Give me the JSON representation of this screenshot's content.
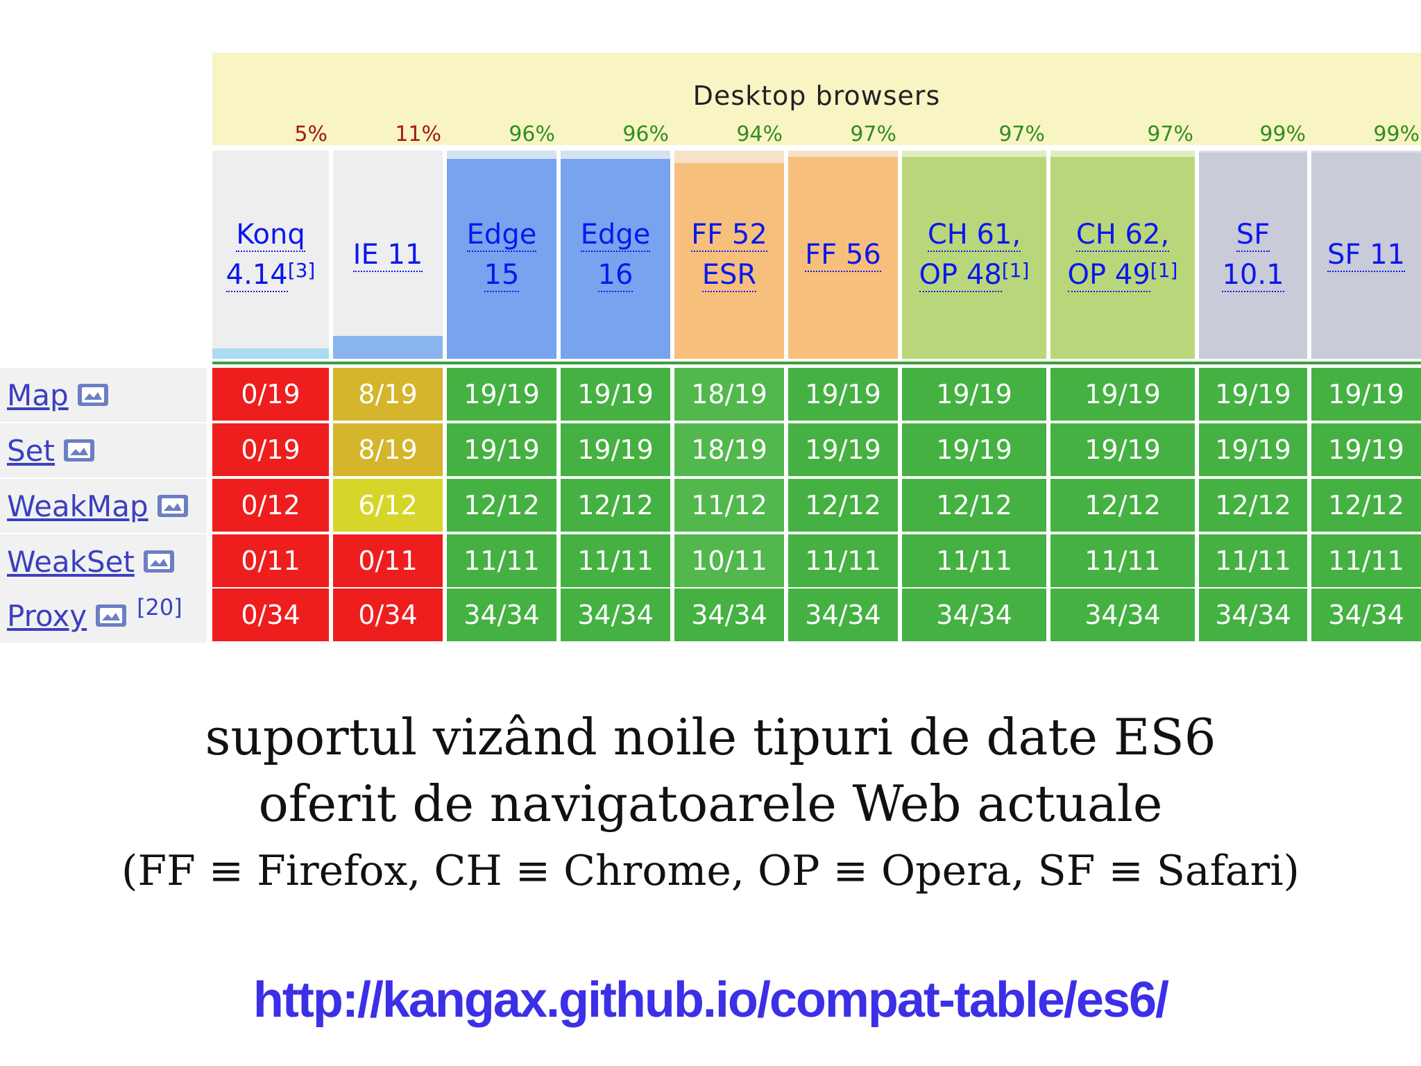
{
  "header": {
    "title": "Desktop browsers"
  },
  "colors": {
    "red": "#ef1e1e",
    "olive": "#d4b52c",
    "yellow": "#d6d62a",
    "green": "#45b142",
    "green_light": "#52b84e",
    "pct_red": "#a01818",
    "pct_green": "#2f8f1f"
  },
  "browsers": [
    {
      "id": "konq",
      "line1": "Konq",
      "line2": "4.14",
      "ref": "[3]",
      "pct": "5%",
      "pct_level": "red",
      "bg": "#eeeeee",
      "fill": "#a9dcf3",
      "fill_level": 0.05
    },
    {
      "id": "ie11",
      "line1": "IE 11",
      "line2": "",
      "ref": "",
      "pct": "11%",
      "pct_level": "red",
      "bg": "#eeeeee",
      "fill": "#8ab4ee",
      "fill_level": 0.11
    },
    {
      "id": "edge15",
      "line1": "Edge",
      "line2": "15",
      "ref": "",
      "pct": "96%",
      "pct_level": "green",
      "bg": "#d4e2f5",
      "fill": "#78a3ee",
      "fill_level": 0.96
    },
    {
      "id": "edge16",
      "line1": "Edge",
      "line2": "16",
      "ref": "",
      "pct": "96%",
      "pct_level": "green",
      "bg": "#d4e2f5",
      "fill": "#78a3ee",
      "fill_level": 0.96
    },
    {
      "id": "ff52",
      "line1": "FF 52",
      "line2": "ESR",
      "ref": "",
      "pct": "94%",
      "pct_level": "green",
      "bg": "#f6e2c8",
      "fill": "#f6c07c",
      "fill_level": 0.94
    },
    {
      "id": "ff56",
      "line1": "FF 56",
      "line2": "",
      "ref": "",
      "pct": "97%",
      "pct_level": "green",
      "bg": "#f6e2c8",
      "fill": "#f6c07c",
      "fill_level": 0.97
    },
    {
      "id": "ch61",
      "line1": "CH 61,",
      "line2": "OP 48",
      "ref": "[1]",
      "pct": "97%",
      "pct_level": "green",
      "bg": "#e0edc4",
      "fill": "#b9d77a",
      "fill_level": 0.97
    },
    {
      "id": "ch62",
      "line1": "CH 62,",
      "line2": "OP 49",
      "ref": "[1]",
      "pct": "97%",
      "pct_level": "green",
      "bg": "#e0edc4",
      "fill": "#b9d77a",
      "fill_level": 0.97
    },
    {
      "id": "sf101",
      "line1": "SF",
      "line2": "10.1",
      "ref": "",
      "pct": "99%",
      "pct_level": "green",
      "bg": "#dcdde6",
      "fill": "#c9cbd9",
      "fill_level": 0.99
    },
    {
      "id": "sf11",
      "line1": "SF 11",
      "line2": "",
      "ref": "",
      "pct": "99%",
      "pct_level": "green",
      "bg": "#dcdde6",
      "fill": "#c9cbd9",
      "fill_level": 0.99
    }
  ],
  "features": [
    {
      "name": "Map",
      "ref": "",
      "cells": [
        "0/19",
        "8/19",
        "19/19",
        "19/19",
        "18/19",
        "19/19",
        "19/19",
        "19/19",
        "19/19",
        "19/19"
      ],
      "levels": [
        "red",
        "olive",
        "green",
        "green",
        "green_light",
        "green",
        "green",
        "green",
        "green",
        "green"
      ]
    },
    {
      "name": "Set",
      "ref": "",
      "cells": [
        "0/19",
        "8/19",
        "19/19",
        "19/19",
        "18/19",
        "19/19",
        "19/19",
        "19/19",
        "19/19",
        "19/19"
      ],
      "levels": [
        "red",
        "olive",
        "green",
        "green",
        "green_light",
        "green",
        "green",
        "green",
        "green",
        "green"
      ]
    },
    {
      "name": "WeakMap",
      "ref": "",
      "cells": [
        "0/12",
        "6/12",
        "12/12",
        "12/12",
        "11/12",
        "12/12",
        "12/12",
        "12/12",
        "12/12",
        "12/12"
      ],
      "levels": [
        "red",
        "yellow",
        "green",
        "green",
        "green_light",
        "green",
        "green",
        "green",
        "green",
        "green"
      ]
    },
    {
      "name": "WeakSet",
      "ref": "",
      "cells": [
        "0/11",
        "0/11",
        "11/11",
        "11/11",
        "10/11",
        "11/11",
        "11/11",
        "11/11",
        "11/11",
        "11/11"
      ],
      "levels": [
        "red",
        "red",
        "green",
        "green",
        "green_light",
        "green",
        "green",
        "green",
        "green",
        "green"
      ]
    },
    {
      "name": "Proxy",
      "ref": "[20]",
      "cells": [
        "0/34",
        "0/34",
        "34/34",
        "34/34",
        "34/34",
        "34/34",
        "34/34",
        "34/34",
        "34/34",
        "34/34"
      ],
      "levels": [
        "red",
        "red",
        "green",
        "green",
        "green",
        "green",
        "green",
        "green",
        "green",
        "green"
      ]
    }
  ],
  "caption": {
    "line1": "suportul vizând noile tipuri de date ES6",
    "line2": "oferit de navigatoarele Web actuale",
    "line3": "(FF ≡ Firefox, CH ≡ Chrome, OP ≡ Opera, SF ≡ Safari)"
  },
  "url": "http://kangax.github.io/compat-table/es6/"
}
